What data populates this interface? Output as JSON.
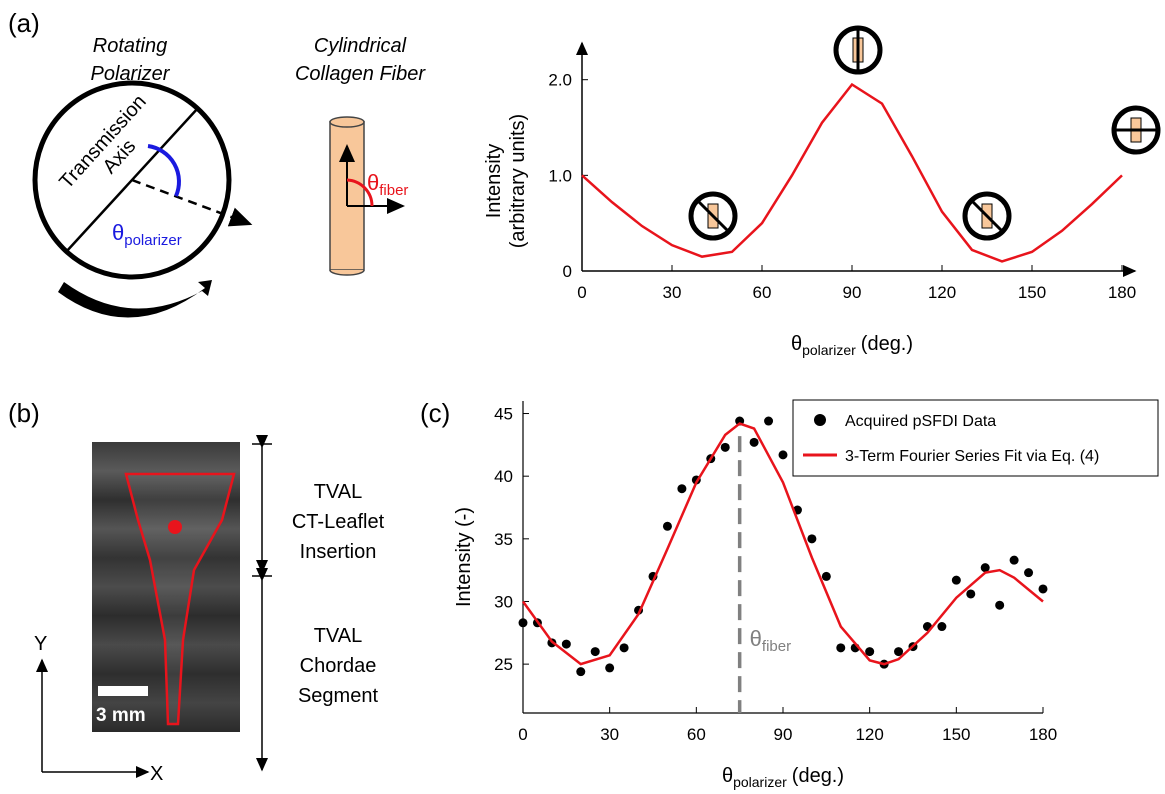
{
  "panel_labels": [
    "(a)",
    "(b)",
    "(c)"
  ],
  "diagram_a": {
    "title_polarizer": [
      "Rotating",
      "Polarizer"
    ],
    "title_fiber": [
      "Cylindrical",
      "Collagen Fiber"
    ],
    "axis_label": [
      "Transmission",
      "Axis"
    ],
    "theta_polarizer": {
      "symbol": "θ",
      "sub": "polarizer"
    },
    "theta_fiber": {
      "symbol": "θ",
      "sub": "fiber"
    }
  },
  "diagram_b": {
    "upper": [
      "TVAL",
      "CT-Leaflet",
      "Insertion"
    ],
    "lower": [
      "TVAL",
      "Chordae",
      "Segment"
    ],
    "scale": "3 mm",
    "y": "Y",
    "x": "X"
  },
  "chart_data": [
    {
      "type": "line",
      "ylabel": [
        "Intensity",
        "(arbitrary units)"
      ],
      "xlabel": {
        "symbol": "θ",
        "sub": "polarizer",
        "unit": "(deg.)"
      },
      "xlim": [
        0,
        180
      ],
      "xticks": [
        0,
        30,
        60,
        90,
        120,
        150,
        180
      ],
      "ylim": [
        0,
        2.3
      ],
      "yticks": [
        0,
        {
          "value": 1,
          "label": "1.0"
        },
        {
          "value": 2,
          "label": "2.0"
        }
      ],
      "series": [
        {
          "type": "line",
          "color": "#e8141c",
          "x": [
            0,
            10,
            20,
            30,
            40,
            50,
            60,
            70,
            80,
            90,
            100,
            110,
            120,
            130,
            140,
            150,
            160,
            170,
            180
          ],
          "values": [
            1.0,
            0.72,
            0.47,
            0.27,
            0.15,
            0.2,
            0.5,
            1.0,
            1.55,
            1.95,
            1.75,
            1.2,
            0.62,
            0.22,
            0.1,
            0.2,
            0.42,
            0.7,
            1.0
          ]
        }
      ]
    },
    {
      "type": "scatter",
      "ylabel": "Intensity (-)",
      "xlabel": {
        "symbol": "θ",
        "sub": "polarizer",
        "unit": "(deg.)"
      },
      "xlim": [
        0,
        180
      ],
      "xticks": [
        0,
        30,
        60,
        90,
        120,
        150,
        180
      ],
      "ylim": [
        21.1,
        46
      ],
      "yticks": [
        25,
        30,
        35,
        40,
        45
      ],
      "legend": "upper right",
      "series": [
        {
          "name": "Acquired pSFDI Data",
          "type": "scatter",
          "color": "#000000",
          "x": [
            0,
            5,
            10,
            15,
            20,
            25,
            30,
            35,
            40,
            45,
            50,
            55,
            60,
            65,
            70,
            75,
            80,
            85,
            90,
            95,
            100,
            105,
            110,
            115,
            120,
            125,
            130,
            135,
            140,
            145,
            150,
            155,
            160,
            165,
            170,
            175,
            180
          ],
          "values": [
            28.3,
            28.3,
            26.7,
            26.6,
            24.4,
            26.0,
            24.7,
            26.3,
            29.3,
            32.0,
            36.0,
            39.0,
            39.7,
            41.4,
            42.3,
            44.4,
            42.7,
            44.4,
            41.7,
            37.3,
            35.0,
            32.0,
            26.3,
            26.3,
            26.0,
            25.0,
            26.0,
            26.4,
            28.0,
            28.0,
            31.7,
            30.6,
            32.7,
            29.7,
            33.3,
            32.3,
            31.0
          ]
        },
        {
          "name": "3-Term Fourier Series Fit via Eq. (4)",
          "type": "line",
          "color": "#e8141c",
          "x": [
            0,
            10,
            20,
            30,
            40,
            50,
            60,
            70,
            75,
            80,
            90,
            100,
            110,
            120,
            125,
            130,
            140,
            150,
            160,
            165,
            170,
            180
          ],
          "values": [
            30.0,
            26.8,
            25.0,
            25.7,
            29.0,
            34.2,
            39.5,
            43.3,
            44.2,
            43.8,
            39.5,
            33.5,
            28.0,
            25.3,
            25.0,
            25.4,
            27.5,
            30.3,
            32.3,
            32.5,
            31.9,
            30.0
          ]
        }
      ],
      "annotation": {
        "x": 75,
        "y": 43.2,
        "symbol": "θ",
        "sub": "fiber",
        "color": "#808080"
      }
    }
  ]
}
